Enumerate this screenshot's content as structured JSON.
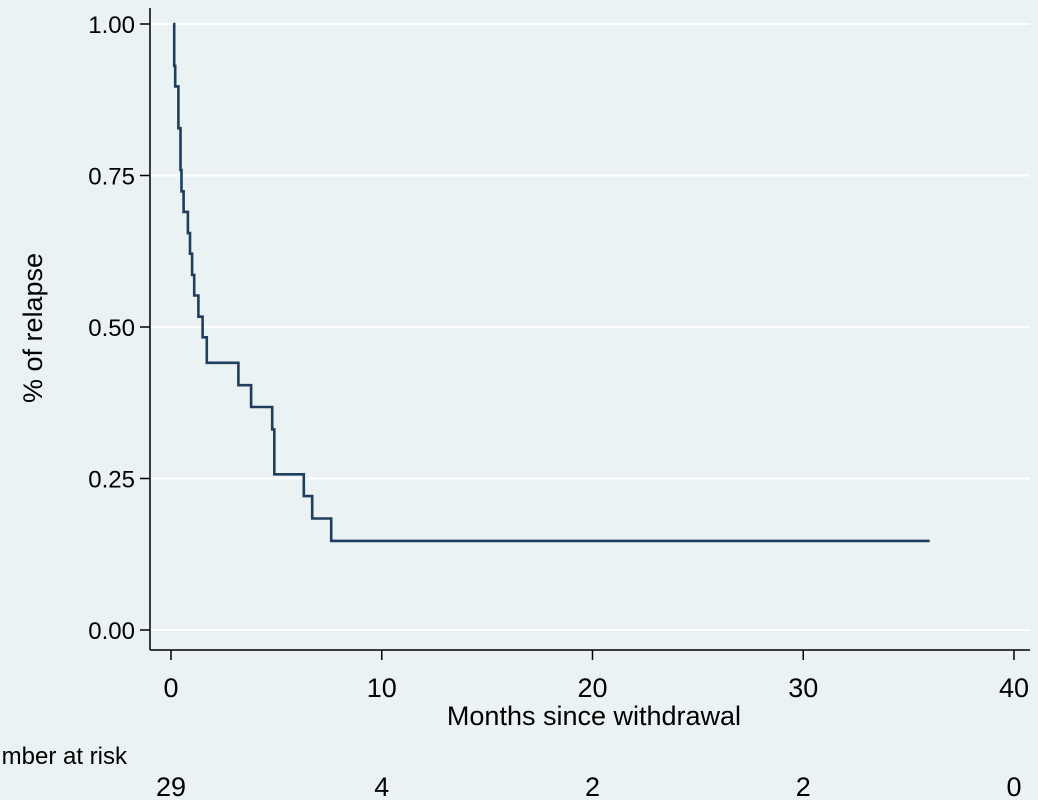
{
  "chart_data": {
    "type": "line",
    "step": true,
    "xlabel": "Months since withdrawal",
    "ylabel": "% of relapse",
    "xlim": [
      0,
      40
    ],
    "ylim": [
      0,
      1
    ],
    "x_ticks": [
      0,
      10,
      20,
      30,
      40
    ],
    "y_ticks": [
      0,
      0.25,
      0.5,
      0.75,
      1
    ],
    "y_tick_labels": [
      "0.00",
      "0.25",
      "0.50",
      "0.75",
      "1.00"
    ],
    "grid": true,
    "series": [
      {
        "color": "#1f3d5c",
        "x": [
          0.1,
          0.15,
          0.2,
          0.35,
          0.45,
          0.5,
          0.6,
          0.8,
          0.9,
          1.0,
          1.1,
          1.3,
          1.5,
          1.7,
          3.2,
          3.8,
          4.8,
          4.9,
          6.3,
          6.7,
          7.6,
          36
        ],
        "y": [
          1.0,
          0.931,
          0.897,
          0.828,
          0.759,
          0.724,
          0.69,
          0.655,
          0.621,
          0.586,
          0.552,
          0.517,
          0.483,
          0.441,
          0.404,
          0.368,
          0.331,
          0.257,
          0.221,
          0.184,
          0.147,
          0.147
        ]
      }
    ],
    "risk_table": {
      "label": "Number at risk",
      "times": [
        0,
        10,
        20,
        30,
        40
      ],
      "counts": [
        "29",
        "4",
        "2",
        "2",
        "0"
      ]
    }
  }
}
